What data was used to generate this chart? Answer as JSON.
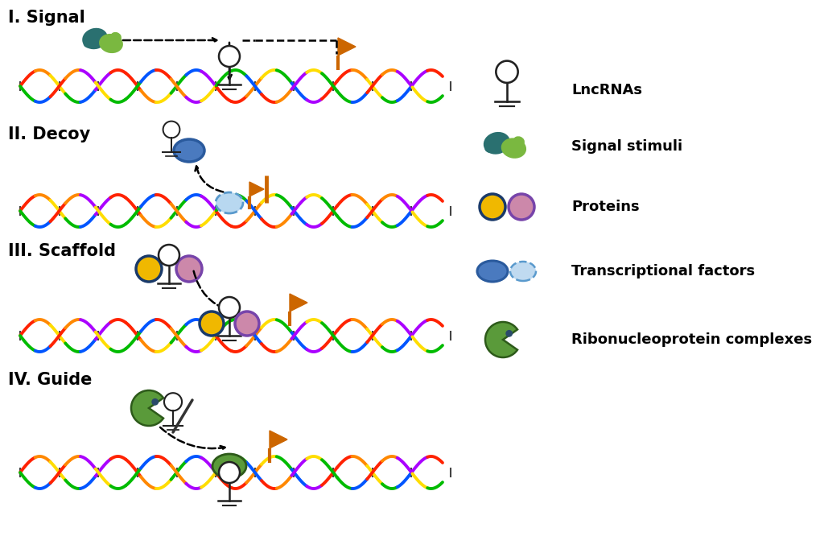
{
  "bg_color": "#ffffff",
  "orange_color": "#cc6600",
  "sections": [
    "I. Signal",
    "II. Decoy",
    "III. Scaffold",
    "IV. Guide"
  ],
  "legend_labels": [
    "LncRNAs",
    "Signal stimuli",
    "Proteins",
    "Transcriptional factors",
    "Ribonucleoprotein complexes"
  ],
  "teal_dark": "#2a7070",
  "teal_light": "#3a9a9a",
  "green_blob": "#7ab840",
  "blue_tf_solid": "#4a7abf",
  "blue_tf_light": "#a8c8e8",
  "yellow_prot": "#f0b800",
  "pink_prot": "#cc88aa",
  "purple_border": "#7744aa",
  "navy_border": "#1a3a6a",
  "green_ribo": "#5a9a3a",
  "dark_green_ribo": "#2d5a1a",
  "dark_blue_ribo": "#2a4a6a",
  "dna_lw": 2.8,
  "label_fontsize": 15,
  "legend_fontsize": 13
}
